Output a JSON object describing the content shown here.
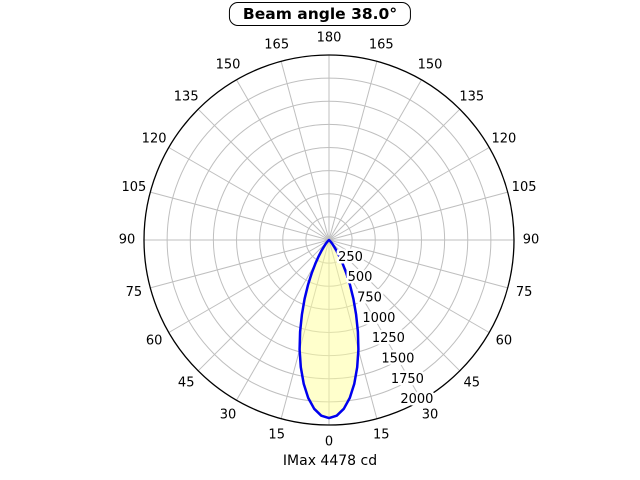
{
  "title": "Beam angle 38.0°",
  "footer": "IMax 4478 cd",
  "chart_data": {
    "type": "polar",
    "title": "Beam angle 38.0°",
    "footer_label": "IMax 4478 cd",
    "beam_angle_deg": 38.0,
    "imax_cd": 4478,
    "angle_step_deg": 15,
    "angle_labels_deg": [
      0,
      15,
      30,
      45,
      60,
      75,
      90,
      105,
      120,
      135,
      150,
      165,
      180
    ],
    "angle_labels_mirrored": true,
    "ring_values": [
      250,
      500,
      750,
      1000,
      1250,
      1500,
      1750,
      2000
    ],
    "r_max": 2000,
    "grid_on": true,
    "curve": {
      "symmetric": true,
      "peak_value": 1925,
      "angles_deg": [
        0,
        2.5,
        5,
        7.5,
        10,
        12.5,
        15,
        17.5,
        20,
        22.5,
        25,
        27.5,
        30,
        32.5,
        35,
        37.5,
        40,
        42.5,
        45,
        47.5,
        50,
        52.5,
        55,
        57.5,
        60,
        62.5
      ],
      "values": [
        1925,
        1901,
        1832,
        1722,
        1578,
        1409,
        1227,
        1040,
        858,
        688,
        536,
        405,
        297,
        210,
        144,
        95,
        60,
        37,
        21,
        12,
        6,
        3,
        2,
        1,
        0,
        0
      ]
    },
    "colors": {
      "lobe_fill": "#FFFF99",
      "lobe_fill_opacity": 0.5,
      "lobe_stroke": "#0000EE",
      "grid": "#BFBFBF",
      "axis": "#000000",
      "text": "#000000",
      "background": "#FFFFFF"
    }
  }
}
